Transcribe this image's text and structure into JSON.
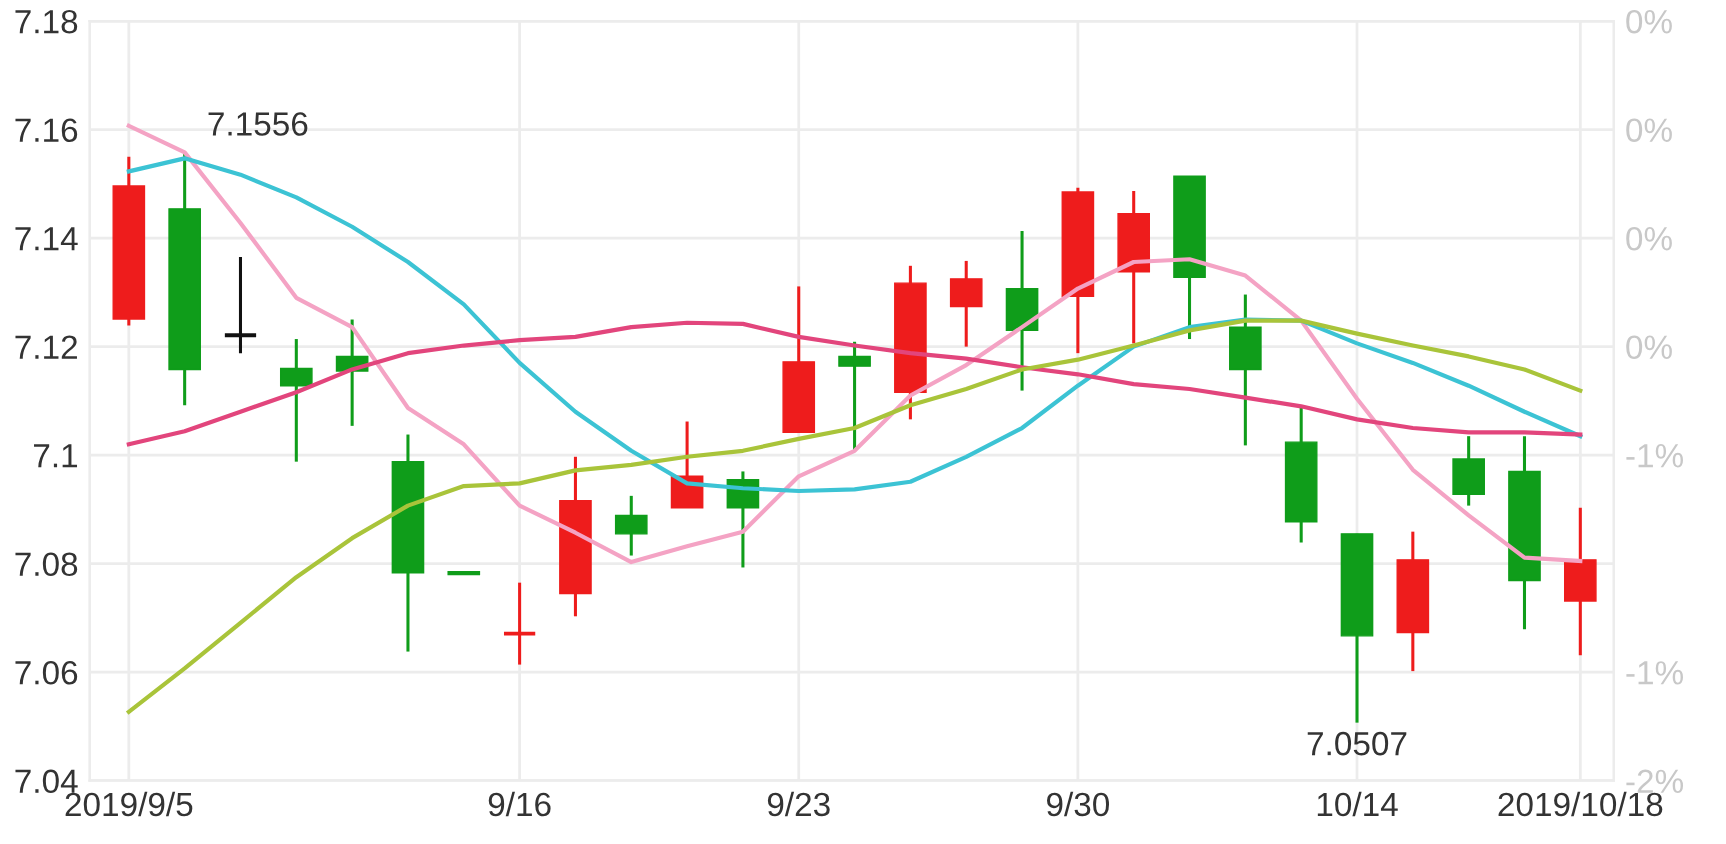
{
  "chart_data": {
    "type": "candlestick",
    "categories": [
      "2019/9/5",
      null,
      null,
      null,
      null,
      null,
      null,
      "9/16",
      null,
      null,
      null,
      null,
      "9/23",
      null,
      null,
      null,
      null,
      "9/30",
      null,
      null,
      null,
      null,
      "10/14",
      null,
      null,
      null,
      "2019/10/18"
    ],
    "ohlc": [
      [
        7.1251,
        7.155,
        7.1239,
        7.1496
      ],
      [
        7.1454,
        7.1556,
        7.1092,
        7.1158
      ],
      [
        7.1221,
        7.1365,
        7.1188,
        7.1221
      ],
      [
        7.116,
        7.1214,
        7.0988,
        7.1128
      ],
      [
        7.1182,
        7.125,
        7.1054,
        7.1155
      ],
      [
        7.0988,
        7.1038,
        7.0638,
        7.0783
      ],
      [
        7.0785,
        7.0785,
        7.078,
        7.078
      ],
      [
        7.0671,
        7.0765,
        7.0614,
        7.0671
      ],
      [
        7.0745,
        7.0997,
        7.0703,
        7.0916
      ],
      [
        7.0889,
        7.0925,
        7.0815,
        7.0855
      ],
      [
        7.0903,
        7.1062,
        7.0903,
        7.0961
      ],
      [
        7.0955,
        7.097,
        7.0793,
        7.0903
      ],
      [
        7.1042,
        7.1311,
        7.1042,
        7.1172
      ],
      [
        7.1182,
        7.1209,
        7.1008,
        7.1164
      ],
      [
        7.1116,
        7.1349,
        7.1066,
        7.1317
      ],
      [
        7.1274,
        7.1358,
        7.12,
        7.1325
      ],
      [
        7.1307,
        7.1413,
        7.1119,
        7.123
      ],
      [
        7.1293,
        7.1493,
        7.1188,
        7.1485
      ],
      [
        7.1338,
        7.1487,
        7.1206,
        7.1445
      ],
      [
        7.1514,
        7.1514,
        7.1214,
        7.1328
      ],
      [
        7.1236,
        7.1296,
        7.1018,
        7.1158
      ],
      [
        7.1024,
        7.1092,
        7.0839,
        7.0877
      ],
      [
        7.0855,
        7.0855,
        7.0507,
        7.0667
      ],
      [
        7.0673,
        7.0859,
        7.0602,
        7.0807
      ],
      [
        7.0993,
        7.1035,
        7.0907,
        7.0928
      ],
      [
        7.097,
        7.1035,
        7.0679,
        7.0769
      ],
      [
        7.0731,
        7.0903,
        7.0631,
        7.0807
      ]
    ],
    "colors": [
      "#ee1c1c",
      "#0f9d1a",
      "#111111",
      "#0f9d1a",
      "#0f9d1a",
      "#0f9d1a",
      "#0f9d1a",
      "#ee1c1c",
      "#ee1c1c",
      "#0f9d1a",
      "#ee1c1c",
      "#0f9d1a",
      "#ee1c1c",
      "#0f9d1a",
      "#ee1c1c",
      "#ee1c1c",
      "#0f9d1a",
      "#ee1c1c",
      "#ee1c1c",
      "#0f9d1a",
      "#0f9d1a",
      "#0f9d1a",
      "#0f9d1a",
      "#ee1c1c",
      "#0f9d1a",
      "#0f9d1a",
      "#ee1c1c"
    ],
    "series": [
      {
        "type": "line",
        "color": "#f4a3c4",
        "values": [
          7.1607,
          7.1558,
          7.1428,
          7.129,
          7.1236,
          7.1087,
          7.102,
          7.0907,
          7.0857,
          7.0803,
          7.0832,
          7.0859,
          7.0961,
          7.1008,
          7.111,
          7.1166,
          7.1236,
          7.1307,
          7.1356,
          7.1361,
          7.1331,
          7.1248,
          7.1104,
          7.0973,
          7.0889,
          7.0811,
          7.0805
        ]
      },
      {
        "type": "line",
        "color": "#3cc3d4",
        "values": [
          7.1523,
          7.1547,
          7.1517,
          7.1475,
          7.1421,
          7.1356,
          7.1278,
          7.117,
          7.108,
          7.1008,
          7.0948,
          7.0939,
          7.0934,
          7.0937,
          7.0951,
          7.0997,
          7.105,
          7.1128,
          7.12,
          7.1236,
          7.125,
          7.1248,
          7.1206,
          7.117,
          7.1128,
          7.108,
          7.1035
        ]
      },
      {
        "type": "line",
        "color": "#e2457c",
        "values": [
          7.102,
          7.1044,
          7.108,
          7.1116,
          7.1158,
          7.1188,
          7.1202,
          7.1212,
          7.1218,
          7.1236,
          7.1244,
          7.1242,
          7.1218,
          7.1202,
          7.1188,
          7.1178,
          7.1162,
          7.1149,
          7.1131,
          7.1122,
          7.1106,
          7.109,
          7.1066,
          7.105,
          7.1042,
          7.1042,
          7.1038
        ]
      },
      {
        "type": "line",
        "color": "#a9c43a",
        "values": [
          7.0527,
          7.0607,
          7.0691,
          7.0775,
          7.0847,
          7.0907,
          7.0943,
          7.0948,
          7.0972,
          7.0982,
          7.0997,
          7.1008,
          7.103,
          7.105,
          7.1092,
          7.1122,
          7.1158,
          7.1176,
          7.1202,
          7.123,
          7.1248,
          7.1248,
          7.1224,
          7.1202,
          7.1182,
          7.1158,
          7.1119
        ]
      }
    ],
    "ylim": [
      7.04,
      7.18
    ],
    "yticks": [
      7.04,
      7.06,
      7.08,
      7.1,
      7.12,
      7.14,
      7.16,
      7.18
    ],
    "y2lim": [
      -1.54,
      0.42
    ],
    "y2ticks": [
      {
        "value": -1.54,
        "label": "-2%"
      },
      {
        "value": -1.26,
        "label": "-1%"
      },
      {
        "value": -0.98,
        "label": null
      },
      {
        "value": -0.7,
        "label": "-1%"
      },
      {
        "value": -0.42,
        "label": "0%"
      },
      {
        "value": -0.14,
        "label": "0%"
      },
      {
        "value": 0.14,
        "label": "0%"
      },
      {
        "value": 0.42,
        "label": "0%"
      }
    ],
    "annotations": [
      "7.1556",
      "7.0507"
    ],
    "grid": true
  }
}
